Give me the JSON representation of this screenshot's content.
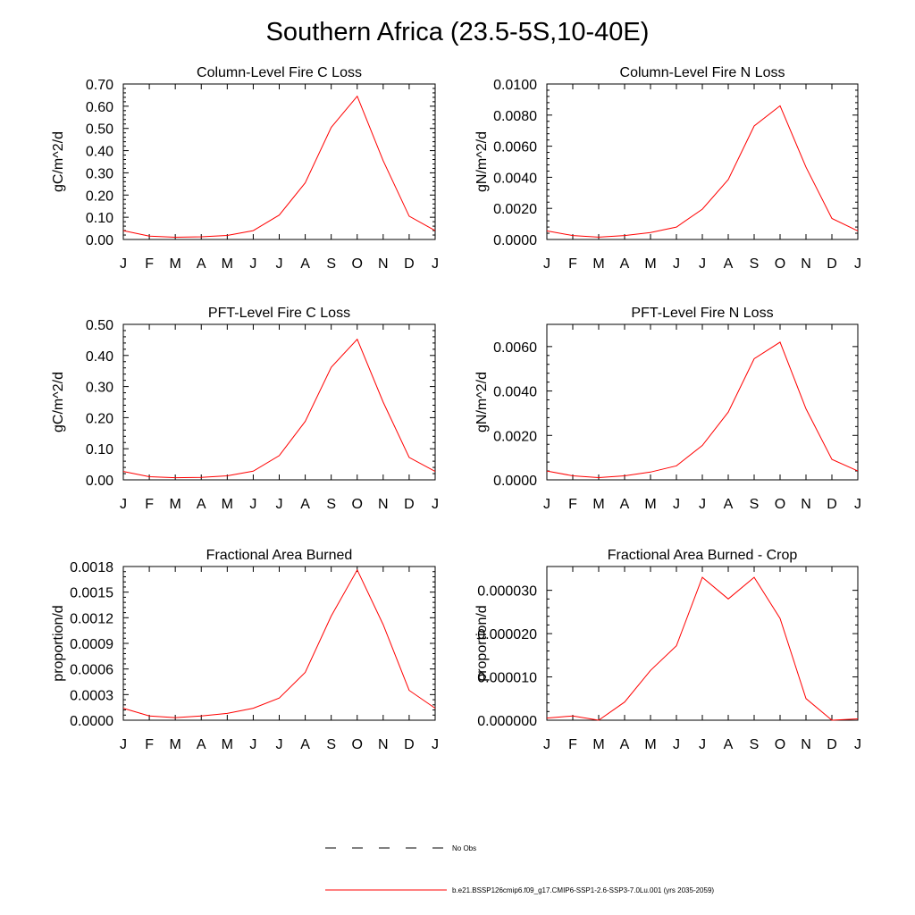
{
  "page_title": "Southern Africa (23.5-5S,10-40E)",
  "legend": {
    "obs_label": "No Obs",
    "model_label": "b.e21.BSSP126cmip6.f09_g17.CMIP6-SSP1-2.6-SSP3-7.0Lu.001 (yrs 2035-2059)",
    "colors": {
      "obs": "#000000",
      "model": "#ff0000"
    }
  },
  "chart_data": [
    {
      "type": "line",
      "title": "Column-Level Fire C Loss",
      "ylabel": "gC/m^2/d",
      "x": [
        "J",
        "F",
        "M",
        "A",
        "M",
        "J",
        "J",
        "A",
        "S",
        "O",
        "N",
        "D",
        "J"
      ],
      "ylim": [
        0,
        0.7
      ],
      "yticks": [
        "0.00",
        "0.10",
        "0.20",
        "0.30",
        "0.40",
        "0.50",
        "0.60",
        "0.70"
      ],
      "series": [
        {
          "color": "#ff0000",
          "values": [
            0.04,
            0.015,
            0.01,
            0.012,
            0.018,
            0.04,
            0.11,
            0.255,
            0.505,
            0.645,
            0.355,
            0.105,
            0.04
          ]
        }
      ]
    },
    {
      "type": "line",
      "title": "Column-Level Fire N Loss",
      "ylabel": "gN/m^2/d",
      "x": [
        "J",
        "F",
        "M",
        "A",
        "M",
        "J",
        "J",
        "A",
        "S",
        "O",
        "N",
        "D",
        "J"
      ],
      "ylim": [
        0,
        0.01
      ],
      "yticks": [
        "0.0000",
        "0.0020",
        "0.0040",
        "0.0060",
        "0.0080",
        "0.0100"
      ],
      "series": [
        {
          "color": "#ff0000",
          "values": [
            0.00055,
            0.00025,
            0.00015,
            0.00025,
            0.00045,
            0.0008,
            0.00195,
            0.00385,
            0.0073,
            0.0086,
            0.00465,
            0.00135,
            0.00055
          ]
        }
      ]
    },
    {
      "type": "line",
      "title": "PFT-Level Fire C Loss",
      "ylabel": "gC/m^2/d",
      "x": [
        "J",
        "F",
        "M",
        "A",
        "M",
        "J",
        "J",
        "A",
        "S",
        "O",
        "N",
        "D",
        "J"
      ],
      "ylim": [
        0,
        0.5
      ],
      "yticks": [
        "0.00",
        "0.10",
        "0.20",
        "0.30",
        "0.40",
        "0.50"
      ],
      "series": [
        {
          "color": "#ff0000",
          "values": [
            0.027,
            0.01,
            0.007,
            0.008,
            0.013,
            0.028,
            0.078,
            0.188,
            0.362,
            0.452,
            0.25,
            0.072,
            0.027
          ]
        }
      ]
    },
    {
      "type": "line",
      "title": "PFT-Level Fire N Loss",
      "ylabel": "gN/m^2/d",
      "x": [
        "J",
        "F",
        "M",
        "A",
        "M",
        "J",
        "J",
        "A",
        "S",
        "O",
        "N",
        "D",
        "J"
      ],
      "ylim": [
        0,
        0.007
      ],
      "yticks": [
        "0.0000",
        "0.0020",
        "0.0040",
        "0.0060"
      ],
      "series": [
        {
          "color": "#ff0000",
          "values": [
            0.0004,
            0.00018,
            0.0001,
            0.00018,
            0.00035,
            0.00063,
            0.00155,
            0.00305,
            0.00545,
            0.0062,
            0.0032,
            0.00092,
            0.0004
          ]
        }
      ]
    },
    {
      "type": "line",
      "title": "Fractional Area Burned",
      "ylabel": "proportion/d",
      "x": [
        "J",
        "F",
        "M",
        "A",
        "M",
        "J",
        "J",
        "A",
        "S",
        "O",
        "N",
        "D",
        "J"
      ],
      "ylim": [
        0,
        0.0018
      ],
      "yticks": [
        "0.0000",
        "0.0003",
        "0.0006",
        "0.0009",
        "0.0012",
        "0.0015",
        "0.0018"
      ],
      "series": [
        {
          "color": "#ff0000",
          "values": [
            0.00014,
            5e-05,
            3e-05,
            5e-05,
            8e-05,
            0.00014,
            0.00026,
            0.00056,
            0.00122,
            0.00176,
            0.00112,
            0.00035,
            0.00014
          ]
        }
      ]
    },
    {
      "type": "line",
      "title": "Fractional Area Burned - Crop",
      "ylabel": "proportion/d",
      "x": [
        "J",
        "F",
        "M",
        "A",
        "M",
        "J",
        "J",
        "A",
        "S",
        "O",
        "N",
        "D",
        "J"
      ],
      "ylim": [
        0,
        3.55e-05
      ],
      "yticks": [
        "0.000000",
        "0.000010",
        "0.000020",
        "0.000030"
      ],
      "series": [
        {
          "color": "#ff0000",
          "values": [
            5e-07,
            1e-06,
            0.0,
            4.2e-06,
            1.15e-05,
            1.72e-05,
            3.3e-05,
            2.8e-05,
            3.3e-05,
            2.35e-05,
            5e-06,
            0.0,
            3e-07
          ]
        }
      ]
    }
  ]
}
